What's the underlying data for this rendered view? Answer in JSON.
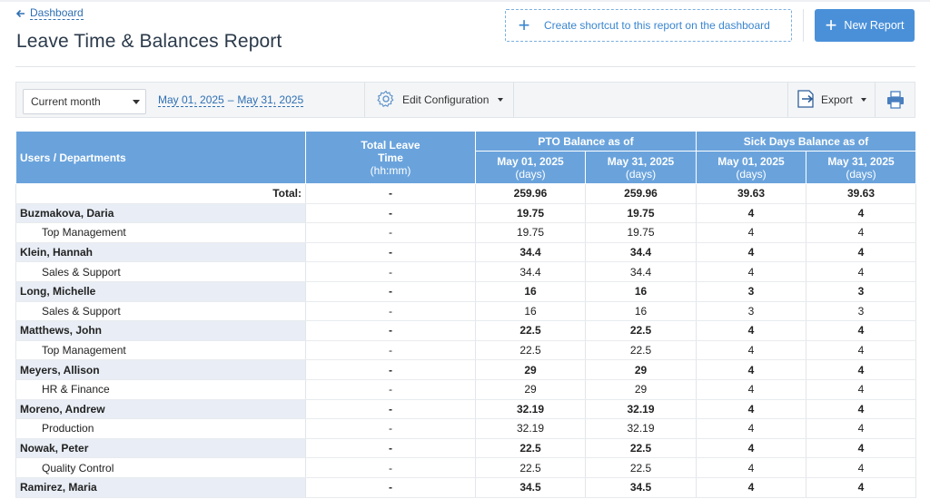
{
  "nav": {
    "back_label": "Dashboard"
  },
  "page": {
    "title": "Leave Time & Balances Report"
  },
  "actions": {
    "shortcut_label": "Create shortcut to this report on the dashboard",
    "new_report_label": "New Report"
  },
  "toolbar": {
    "period_value": "Current month",
    "date_from": "May 01, 2025",
    "date_sep": "–",
    "date_to": "May 31, 2025",
    "edit_config_label": "Edit Configuration",
    "export_label": "Export"
  },
  "table": {
    "headers": {
      "users": "Users / Departments",
      "total_leave": "Total Leave Time",
      "total_leave_unit": "(hh:mm)",
      "pto_group": "PTO Balance as of",
      "sick_group": "Sick Days Balance as of",
      "date1": "May 01, 2025",
      "date2": "May 31, 2025",
      "days_unit": "(days)"
    },
    "total_row": [
      "Total:",
      "-",
      "259.96",
      "259.96",
      "39.63",
      "39.63"
    ],
    "rows": [
      {
        "type": "user",
        "cells": [
          "Buzmakova, Daria",
          "-",
          "19.75",
          "19.75",
          "4",
          "4"
        ]
      },
      {
        "type": "dept",
        "cells": [
          "Top Management",
          "-",
          "19.75",
          "19.75",
          "4",
          "4"
        ]
      },
      {
        "type": "user",
        "cells": [
          "Klein, Hannah",
          "-",
          "34.4",
          "34.4",
          "4",
          "4"
        ]
      },
      {
        "type": "dept",
        "cells": [
          "Sales & Support",
          "-",
          "34.4",
          "34.4",
          "4",
          "4"
        ]
      },
      {
        "type": "user",
        "cells": [
          "Long, Michelle",
          "-",
          "16",
          "16",
          "3",
          "3"
        ]
      },
      {
        "type": "dept",
        "cells": [
          "Sales & Support",
          "-",
          "16",
          "16",
          "3",
          "3"
        ]
      },
      {
        "type": "user",
        "cells": [
          "Matthews, John",
          "-",
          "22.5",
          "22.5",
          "4",
          "4"
        ]
      },
      {
        "type": "dept",
        "cells": [
          "Top Management",
          "-",
          "22.5",
          "22.5",
          "4",
          "4"
        ]
      },
      {
        "type": "user",
        "cells": [
          "Meyers, Allison",
          "-",
          "29",
          "29",
          "4",
          "4"
        ]
      },
      {
        "type": "dept",
        "cells": [
          "HR & Finance",
          "-",
          "29",
          "29",
          "4",
          "4"
        ]
      },
      {
        "type": "user",
        "cells": [
          "Moreno, Andrew",
          "-",
          "32.19",
          "32.19",
          "4",
          "4"
        ]
      },
      {
        "type": "dept",
        "cells": [
          "Production",
          "-",
          "32.19",
          "32.19",
          "4",
          "4"
        ]
      },
      {
        "type": "user",
        "cells": [
          "Nowak, Peter",
          "-",
          "22.5",
          "22.5",
          "4",
          "4"
        ]
      },
      {
        "type": "dept",
        "cells": [
          "Quality Control",
          "-",
          "22.5",
          "22.5",
          "4",
          "4"
        ]
      },
      {
        "type": "user",
        "cells": [
          "Ramirez, Maria",
          "-",
          "34.5",
          "34.5",
          "4",
          "4"
        ]
      }
    ]
  }
}
